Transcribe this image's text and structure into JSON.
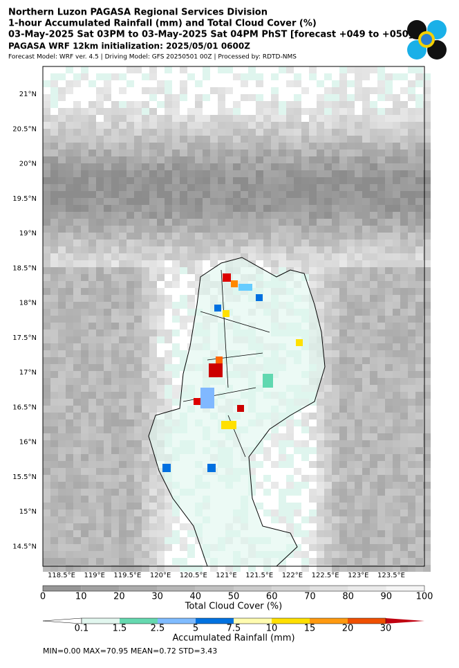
{
  "header": {
    "title_lines": [
      "Northern Luzon PAGASA Regional Services Division",
      "1-hour Accumulated Rainfall (mm) and Total Cloud Cover (%)",
      "03-May-2025 Sat 03PM to 03-May-2025 Sat 04PM PhST [forecast +049 to +050]"
    ],
    "subtitle": "PAGASA WRF 12km initialization: 2025/05/01 0600Z",
    "credits": "Forecast Model: WRF ver. 4.5 | Driving Model: GFS 20250501 00Z | Processed by: RDTD-NMS"
  },
  "map": {
    "lat_labels": [
      "21°N",
      "20.5°N",
      "20°N",
      "19.5°N",
      "19°N",
      "18.5°N",
      "18°N",
      "17.5°N",
      "17°N",
      "16.5°N",
      "16°N",
      "15.5°N",
      "15°N",
      "14.5°N"
    ],
    "lon_labels": [
      "118.5°E",
      "119°E",
      "119.5°E",
      "120°E",
      "120.5°E",
      "121°E",
      "121.5°E",
      "122°E",
      "122.5°E",
      "123°E",
      "123.5°E"
    ]
  },
  "cloud_colorbar": {
    "ticks": [
      "0",
      "10",
      "20",
      "30",
      "40",
      "50",
      "60",
      "70",
      "80",
      "90",
      "100"
    ],
    "label": "Total Cloud Cover (%)"
  },
  "rain_colorbar": {
    "ticks": [
      "0.1",
      "1.5",
      "2.5",
      "5",
      "7.5",
      "10",
      "15",
      "20",
      "30"
    ],
    "label": "Accumulated Rainfall (mm)"
  },
  "stats": "MIN=0.00   MAX=70.95   MEAN=0.72   STD=3.43"
}
